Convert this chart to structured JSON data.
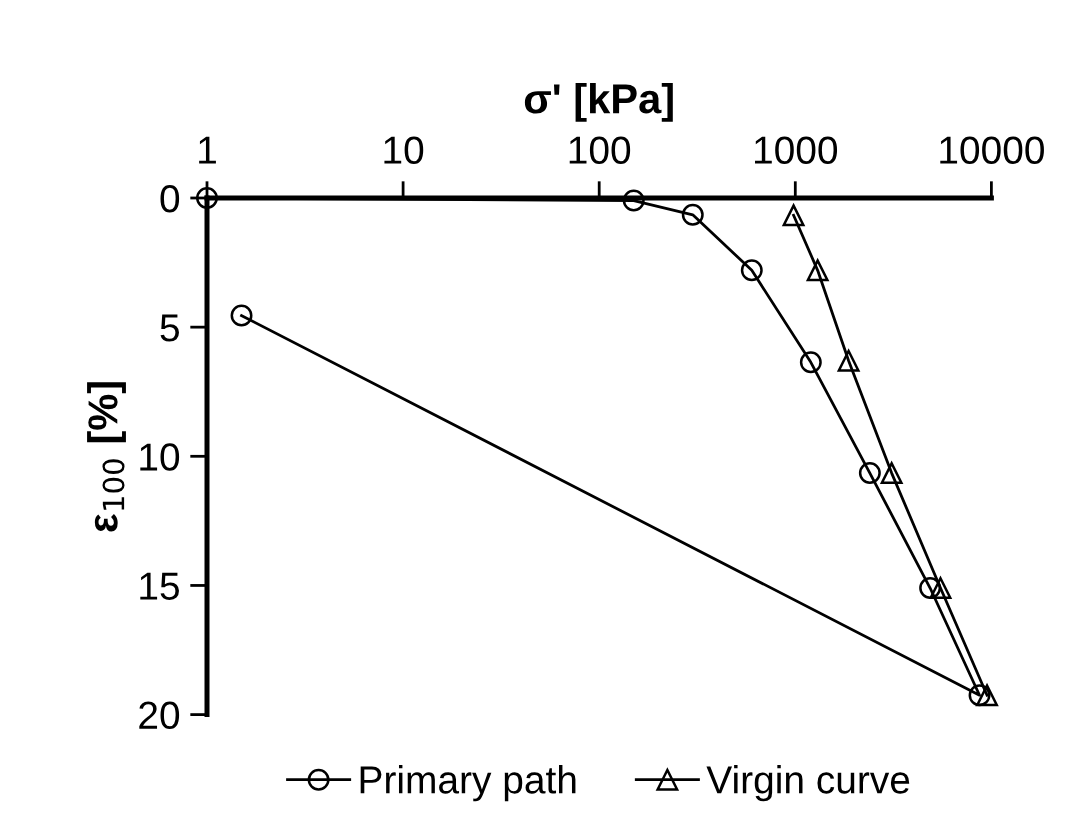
{
  "chart_data": {
    "type": "line",
    "xlabel": "σ' [kPa]",
    "ylabel": "ε$_{100}$ [%]",
    "log": "x",
    "xlim": [
      1,
      10000
    ],
    "xticks": [
      1,
      10,
      100,
      1000,
      10000
    ],
    "ylim": [
      20,
      0
    ],
    "yticks": [
      0,
      5,
      10,
      15,
      20
    ],
    "grid": false,
    "legend": "bottom",
    "series": [
      {
        "name": "Primary path",
        "color": "#000000",
        "marker": "circle",
        "x": [
          1,
          150,
          300,
          600,
          1200,
          2400,
          4870,
          8700,
          1.5
        ],
        "values": [
          0,
          0.1,
          0.65,
          2.8,
          6.36,
          10.65,
          15.1,
          19.25,
          4.55
        ]
      },
      {
        "name": "Virgin curve",
        "color": "#000000",
        "marker": "triangle",
        "x": [
          980,
          1300,
          1870,
          3100,
          5500,
          9500
        ],
        "values": [
          0.67,
          2.8,
          6.3,
          10.65,
          15.1,
          19.25
        ]
      }
    ]
  }
}
